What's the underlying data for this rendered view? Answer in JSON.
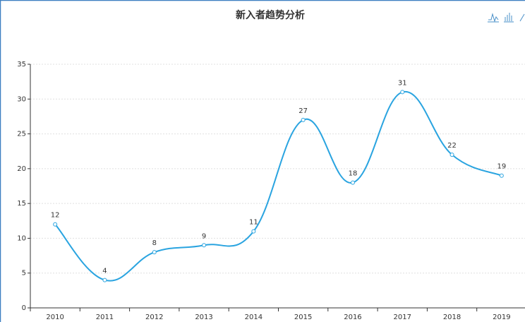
{
  "chart_data": {
    "type": "line",
    "title": "新入者趋势分析",
    "categories": [
      "2010",
      "2011",
      "2012",
      "2013",
      "2014",
      "2015",
      "2016",
      "2017",
      "2018",
      "2019"
    ],
    "values": [
      12,
      4,
      8,
      9,
      11,
      27,
      18,
      31,
      22,
      19
    ],
    "color": "#2aa4e0",
    "smooth": true,
    "ylim": [
      0,
      35
    ],
    "yticks": [
      0,
      5,
      10,
      15,
      20,
      25,
      30,
      35
    ],
    "grid": true
  }
}
